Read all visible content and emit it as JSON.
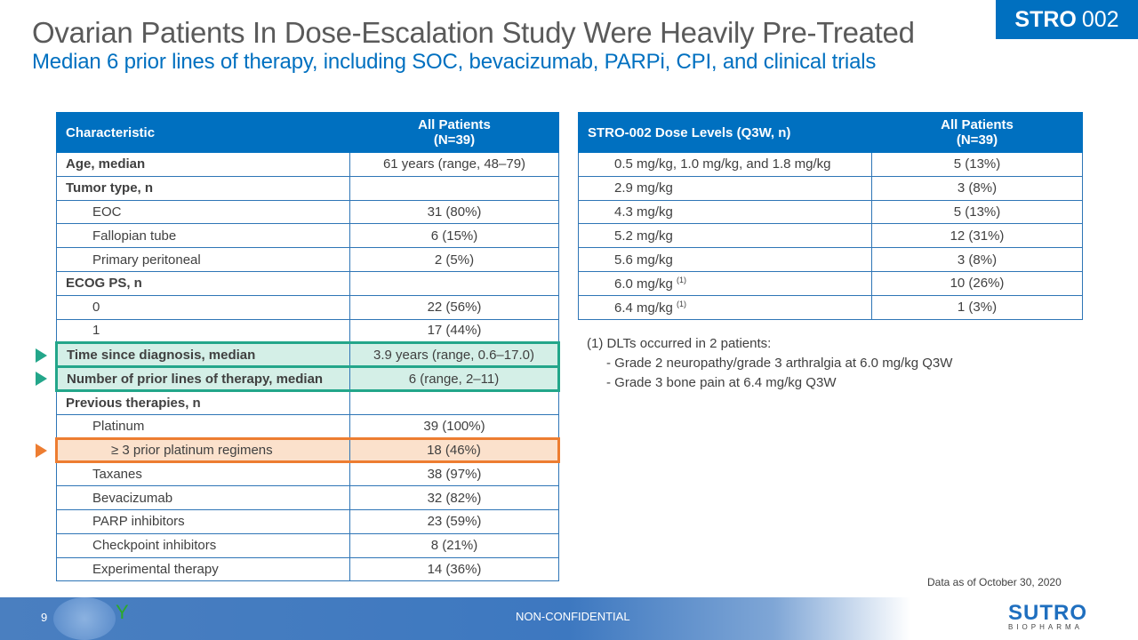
{
  "header": {
    "title": "Ovarian Patients In Dose-Escalation Study Were Heavily Pre-Treated",
    "subtitle": "Median 6 prior lines of therapy, including SOC, bevacizumab, PARPi, CPI, and clinical trials",
    "badge_bold": "STRO",
    "badge_rest": "002"
  },
  "left_table": {
    "headers": [
      "Characteristic",
      "All Patients",
      "(N=39)"
    ],
    "rows": [
      {
        "label": "Age, median",
        "value": "61 years (range, 48–79)"
      },
      {
        "label": "Tumor type, n",
        "value": ""
      },
      {
        "label": "EOC",
        "value": "31 (80%)"
      },
      {
        "label": "Fallopian tube",
        "value": "6 (15%)"
      },
      {
        "label": "Primary peritoneal",
        "value": "2 (5%)"
      },
      {
        "label": "ECOG PS, n",
        "value": ""
      },
      {
        "label": "0",
        "value": "22 (56%)"
      },
      {
        "label": "1",
        "value": "17 (44%)"
      },
      {
        "label": "Time since diagnosis, median",
        "value": "3.9 years (range, 0.6–17.0)"
      },
      {
        "label": "Number of prior lines of therapy, median",
        "value": "6 (range, 2–11)"
      },
      {
        "label": "Previous therapies, n",
        "value": ""
      },
      {
        "label": "Platinum",
        "value": "39 (100%)"
      },
      {
        "label": "≥ 3 prior platinum regimens",
        "value": "18 (46%)"
      },
      {
        "label": "Taxanes",
        "value": "38 (97%)"
      },
      {
        "label": "Bevacizumab",
        "value": "32 (82%)"
      },
      {
        "label": "PARP inhibitors",
        "value": "23 (59%)"
      },
      {
        "label": "Checkpoint inhibitors",
        "value": "8 (21%)"
      },
      {
        "label": "Experimental therapy",
        "value": "14 (36%)"
      }
    ]
  },
  "right_table": {
    "headers": [
      "STRO-002 Dose Levels (Q3W, n)",
      "All Patients",
      "(N=39)"
    ],
    "rows": [
      {
        "label": "0.5 mg/kg, 1.0 mg/kg, and 1.8 mg/kg",
        "value": "5 (13%)"
      },
      {
        "label": "2.9 mg/kg",
        "value": "3 (8%)"
      },
      {
        "label": "4.3 mg/kg",
        "value": "5 (13%)"
      },
      {
        "label": "5.2 mg/kg",
        "value": "12 (31%)"
      },
      {
        "label": "5.6 mg/kg",
        "value": "3 (8%)"
      },
      {
        "label": "6.0 mg/kg",
        "sup": "(1)",
        "value": "10 (26%)"
      },
      {
        "label": "6.4 mg/kg",
        "sup": "(1)",
        "value": "1 (3%)"
      }
    ]
  },
  "notes": {
    "head": "(1) DLTs occurred in 2 patients:",
    "items": [
      "-   Grade 2 neuropathy/grade  3 arthralgia at 6.0 mg/kg Q3W",
      "-   Grade 3 bone pain at 6.4 mg/kg Q3W"
    ]
  },
  "as_of": "Data as of October 30, 2020",
  "footer": {
    "page": "9",
    "classification": "NON-CONFIDENTIAL",
    "logo": "SUTRO",
    "logo_sub": "BIOPHARMA"
  },
  "colors": {
    "brand_blue": "#0070c0",
    "highlight_green": "#23a68a",
    "highlight_orange": "#ed7d31"
  }
}
